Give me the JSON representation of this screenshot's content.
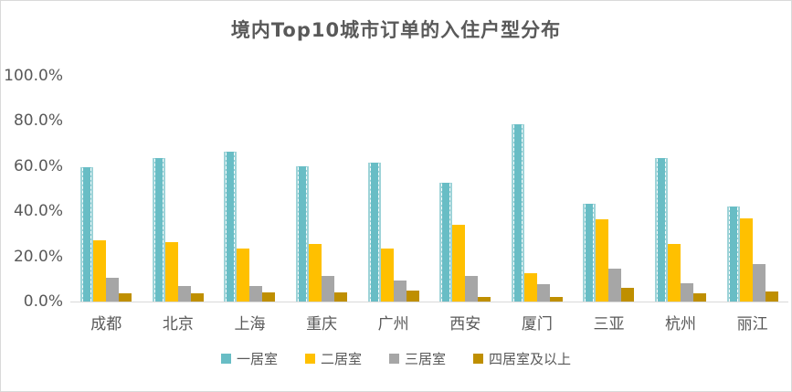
{
  "title": "境内Top10城市订单的入住户型分布",
  "text_color": "#595959",
  "axis_line_color": "#d9d9d9",
  "chart_data": {
    "type": "bar",
    "title": "境内Top10城市订单的入住户型分布",
    "categories": [
      "成都",
      "北京",
      "上海",
      "重庆",
      "广州",
      "西安",
      "厦门",
      "三亚",
      "杭州",
      "丽江"
    ],
    "series": [
      {
        "name": "一居室",
        "color": "#68bdc5",
        "edge_color": "#9dd3d8",
        "values": [
          59.5,
          63.5,
          66.5,
          60.0,
          61.5,
          52.5,
          78.5,
          43.5,
          63.5,
          42.0
        ]
      },
      {
        "name": "二居室",
        "color": "#ffc000",
        "values": [
          27.0,
          26.5,
          23.5,
          25.5,
          23.5,
          34.0,
          12.5,
          36.5,
          25.5,
          37.0
        ]
      },
      {
        "name": "三居室",
        "color": "#a6a6a6",
        "values": [
          10.5,
          7.0,
          7.0,
          11.5,
          9.5,
          11.5,
          7.5,
          14.5,
          8.0,
          16.5
        ]
      },
      {
        "name": "四居室及以上",
        "color": "#bf8f00",
        "values": [
          3.5,
          3.5,
          4.0,
          4.0,
          5.0,
          2.0,
          2.0,
          6.0,
          3.5,
          4.5
        ]
      }
    ],
    "xlabel": "",
    "ylabel": "",
    "ylim": [
      0,
      100
    ],
    "y_ticks": [
      "100.0%",
      "80.0%",
      "60.0%",
      "40.0%",
      "20.0%",
      "0.0%"
    ],
    "grid": false,
    "legend_position": "bottom"
  }
}
